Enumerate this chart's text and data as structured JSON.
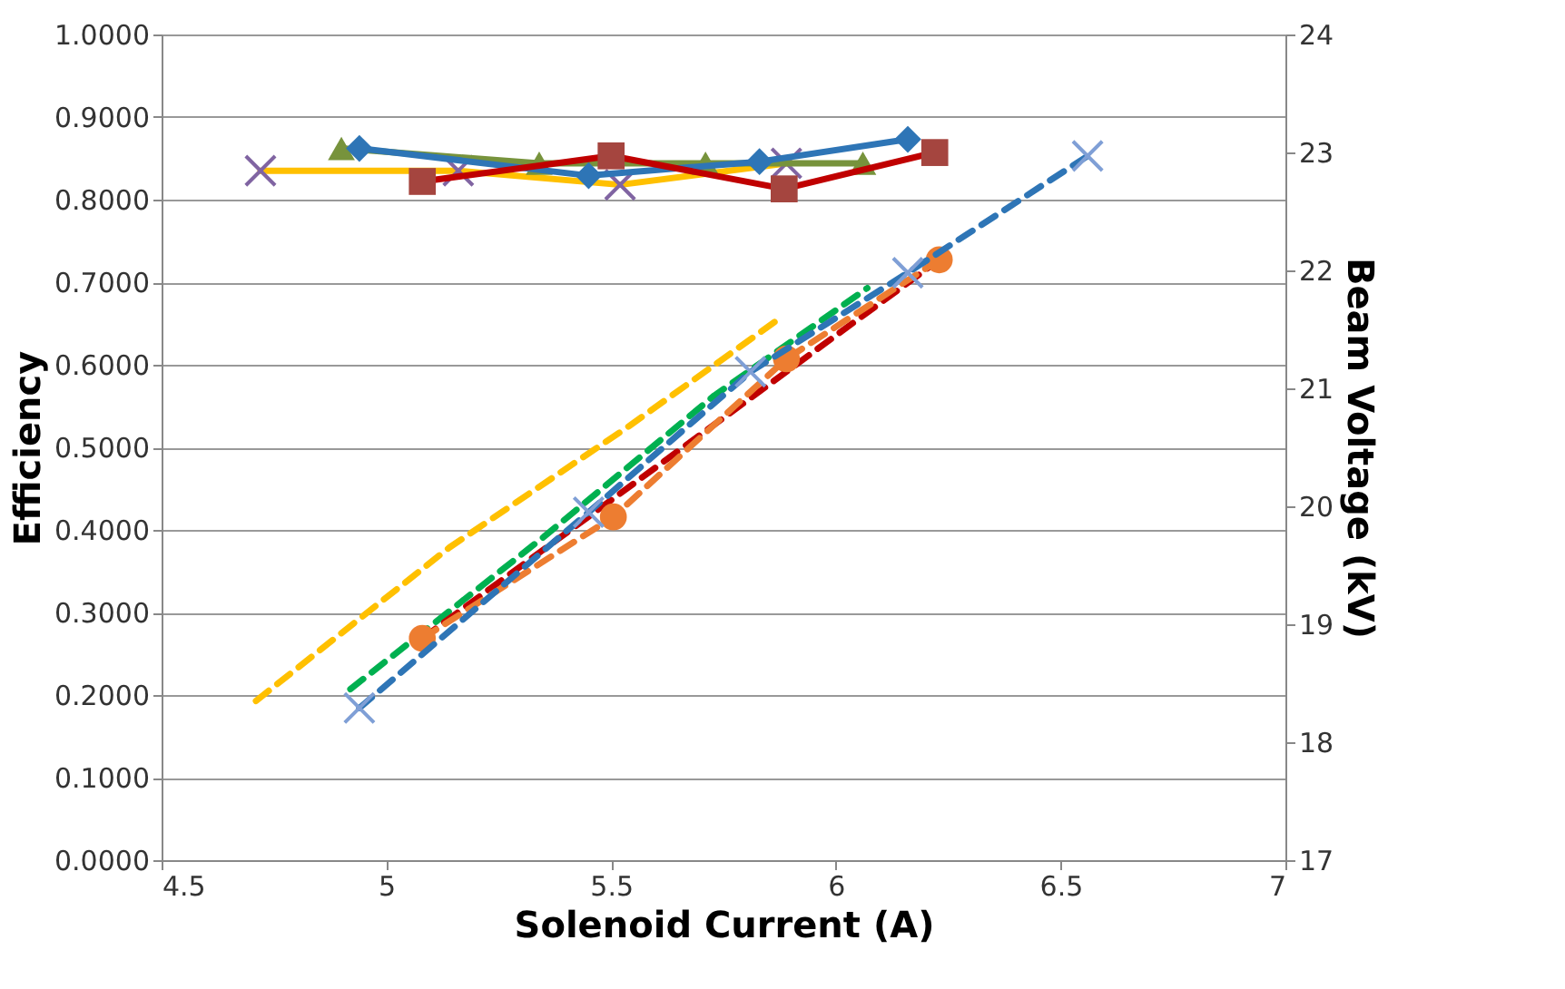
{
  "chart_data": {
    "type": "line",
    "xlabel": "Solenoid Current (A)",
    "ylabel": "Efficiency",
    "y2label": "Beam Voltage (kV)",
    "xlim": [
      4.5,
      7
    ],
    "xticks": [
      4.5,
      5,
      5.5,
      6,
      6.5,
      7
    ],
    "ylim": [
      0,
      1
    ],
    "yticks": [
      {
        "value": 0,
        "label": "0.0000"
      },
      {
        "value": 0.1,
        "label": "0.1000"
      },
      {
        "value": 0.2,
        "label": "0.2000"
      },
      {
        "value": 0.3,
        "label": "0.3000"
      },
      {
        "value": 0.4,
        "label": "0.4000"
      },
      {
        "value": 0.5,
        "label": "0.5000"
      },
      {
        "value": 0.6,
        "label": "0.6000"
      },
      {
        "value": 0.7,
        "label": "0.7000"
      },
      {
        "value": 0.8,
        "label": "0.8000"
      },
      {
        "value": 0.9,
        "label": "0.9000"
      },
      {
        "value": 1,
        "label": "1.0000"
      }
    ],
    "y2lim": [
      17,
      24
    ],
    "y2ticks": [
      17,
      18,
      19,
      20,
      21,
      22,
      23,
      24
    ],
    "grid": "y",
    "series": [
      {
        "color": "#ffc000",
        "marker": "cross",
        "line_style": "solid",
        "x": [
          4.72,
          5.16,
          5.52,
          5.89
        ],
        "values": [
          0.835,
          0.835,
          0.818,
          0.844
        ],
        "colors": [
          "#8064a2",
          "#8064a2",
          "#8064a2",
          "#8064a2"
        ]
      },
      {
        "color": "#77933c",
        "marker": "triangle",
        "line_style": "solid",
        "x": [
          4.9,
          5.34,
          5.71,
          6.06
        ],
        "values": [
          0.862,
          0.844,
          0.844,
          0.844
        ]
      },
      {
        "color": "#2e75b6",
        "marker": "diamond",
        "line_style": "solid",
        "x": [
          4.94,
          5.45,
          5.83,
          6.16
        ],
        "values": [
          0.862,
          0.829,
          0.846,
          0.873
        ]
      },
      {
        "color": "#c00000",
        "marker": "square",
        "line_style": "solid",
        "x": [
          5.08,
          5.5,
          5.885,
          6.22
        ],
        "values": [
          0.822,
          0.853,
          0.813,
          0.857
        ],
        "colors": [
          "#a5453f",
          "#a5453f",
          "#a5453f",
          "#a5453f"
        ]
      },
      {
        "color": "#ffc000",
        "marker": "none",
        "line_style": "dashed",
        "axis": "y2",
        "x": [
          4.71,
          5.14,
          5.54,
          5.87
        ],
        "values": [
          18.35,
          19.65,
          20.68,
          21.58
        ]
      },
      {
        "color": "#00b050",
        "marker": "none",
        "line_style": "dashed",
        "axis": "y2",
        "x": [
          4.92,
          5.35,
          5.73,
          6.07
        ],
        "values": [
          18.45,
          19.74,
          20.94,
          21.85
        ]
      },
      {
        "color": "#c00000",
        "marker": "none",
        "line_style": "dashed",
        "axis": "y2",
        "x": [
          5.08,
          6.23
        ],
        "values": [
          18.88,
          22.09
        ]
      },
      {
        "color": "#ed7d31",
        "marker": "circle",
        "line_style": "dashed",
        "axis": "y2",
        "x": [
          5.08,
          5.505,
          5.89,
          6.23
        ],
        "values": [
          18.88,
          19.91,
          21.25,
          22.09
        ]
      },
      {
        "color": "#2e75b6",
        "marker": "cross",
        "line_style": "dashed",
        "axis": "y2",
        "x": [
          4.94,
          5.45,
          5.81,
          6.16,
          6.56
        ],
        "values": [
          18.29,
          19.95,
          21.14,
          21.98,
          22.97
        ],
        "colors": [
          "#7f9fd6",
          "#7f9fd6",
          "#7f9fd6",
          "#7f9fd6",
          "#7f9fd6"
        ]
      }
    ]
  }
}
